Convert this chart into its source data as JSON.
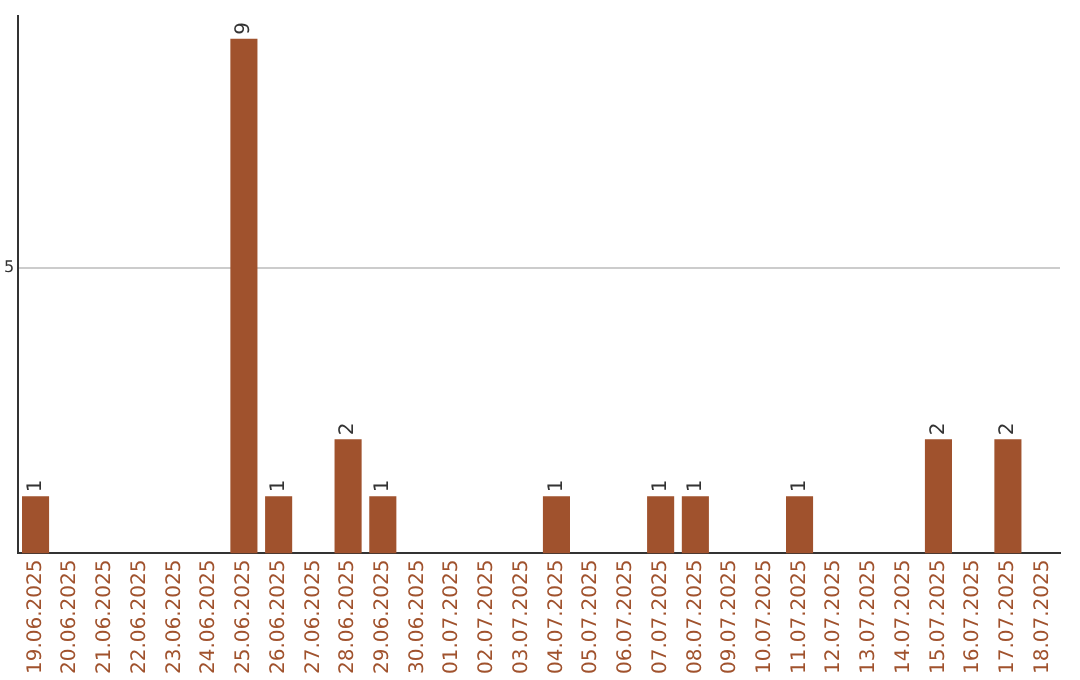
{
  "chart_data": {
    "type": "bar",
    "categories": [
      "19.06.2025",
      "20.06.2025",
      "21.06.2025",
      "22.06.2025",
      "23.06.2025",
      "24.06.2025",
      "25.06.2025",
      "26.06.2025",
      "27.06.2025",
      "28.06.2025",
      "29.06.2025",
      "30.06.2025",
      "01.07.2025",
      "02.07.2025",
      "03.07.2025",
      "04.07.2025",
      "05.07.2025",
      "06.07.2025",
      "07.07.2025",
      "08.07.2025",
      "09.07.2025",
      "10.07.2025",
      "11.07.2025",
      "12.07.2025",
      "13.07.2025",
      "14.07.2025",
      "15.07.2025",
      "16.07.2025",
      "17.07.2025",
      "18.07.2025"
    ],
    "values": [
      1,
      0,
      0,
      0,
      0,
      0,
      9,
      1,
      0,
      2,
      1,
      0,
      0,
      0,
      0,
      1,
      0,
      0,
      1,
      1,
      0,
      0,
      1,
      0,
      0,
      0,
      2,
      0,
      2,
      0
    ],
    "value_labels": [
      "1",
      null,
      null,
      null,
      null,
      null,
      "9",
      "1",
      null,
      "2",
      "1",
      null,
      null,
      null,
      null,
      "1",
      null,
      null,
      "1",
      "1",
      null,
      null,
      "1",
      null,
      null,
      null,
      "2",
      null,
      "2",
      null
    ],
    "color": "#a0522d",
    "ylim": [
      0,
      9.4
    ],
    "yticks": [
      5
    ],
    "grid": "y",
    "legend": false
  }
}
